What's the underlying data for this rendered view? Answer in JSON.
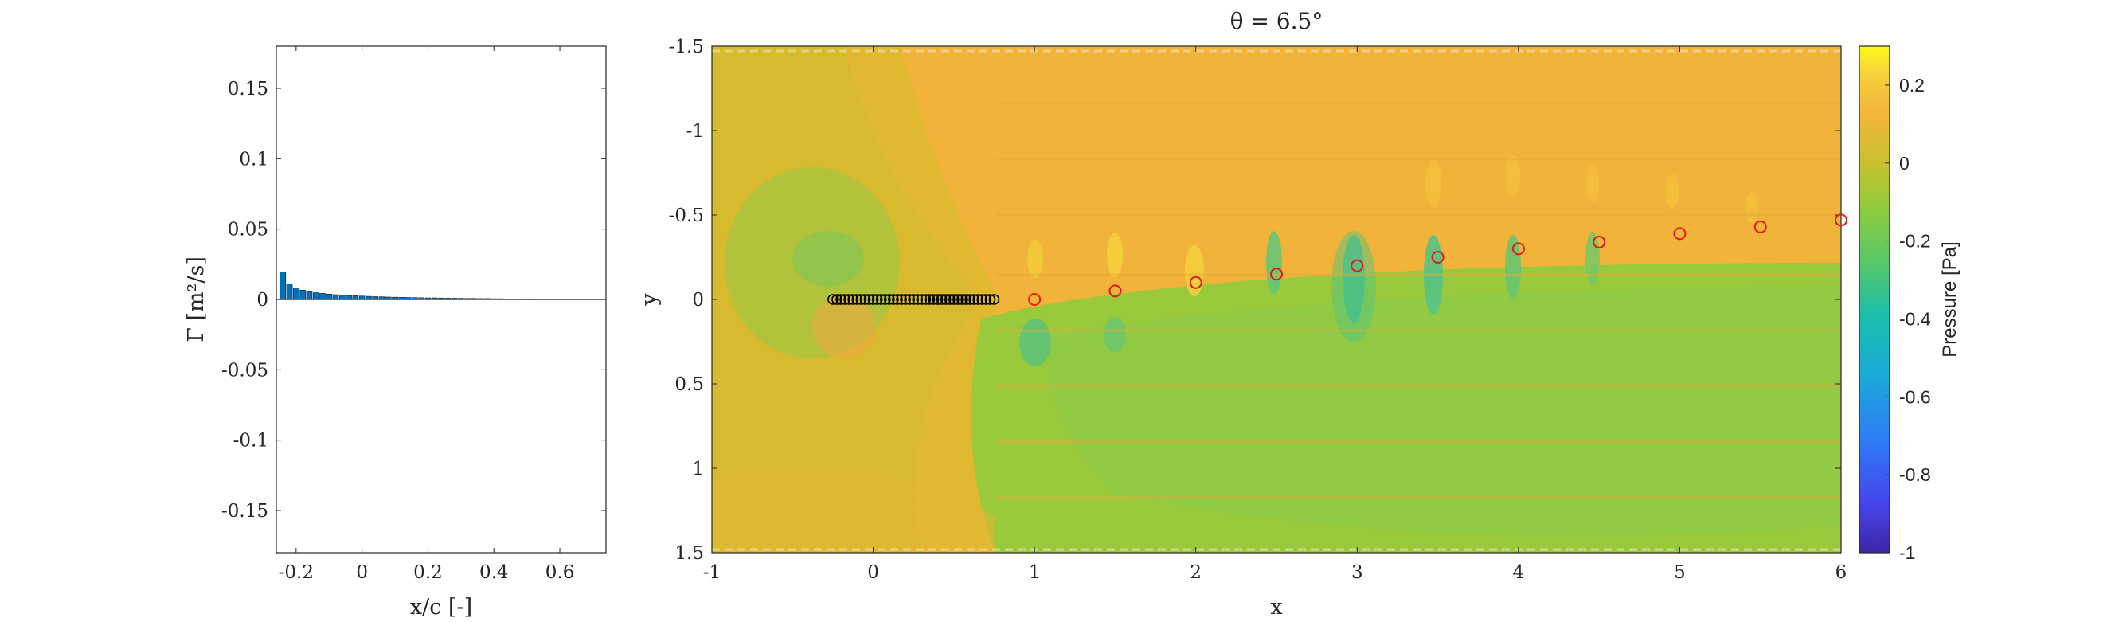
{
  "chart_data": [
    {
      "type": "bar",
      "xlabel": "x/c [-]",
      "ylabel": "Γ [m²/s]",
      "xlim": [
        -0.26,
        0.74
      ],
      "ylim": [
        -0.18,
        0.18
      ],
      "xticks": [
        "-0.2",
        "0",
        "0.2",
        "0.4",
        "0.6"
      ],
      "xtick_values": [
        -0.2,
        0,
        0.2,
        0.4,
        0.6
      ],
      "yticks": [
        "0.15",
        "0.1",
        "0.05",
        "0",
        "-0.05",
        "-0.1",
        "-0.15"
      ],
      "ytick_values": [
        0.15,
        0.1,
        0.05,
        0,
        -0.05,
        -0.1,
        -0.15
      ],
      "bar_color": "#0072BD",
      "x": [
        -0.24,
        -0.22,
        -0.2,
        -0.18,
        -0.16,
        -0.14,
        -0.12,
        -0.1,
        -0.08,
        -0.06,
        -0.04,
        -0.02,
        0,
        0.02,
        0.04,
        0.06,
        0.08,
        0.1,
        0.12,
        0.14,
        0.16,
        0.18,
        0.2,
        0.22,
        0.24,
        0.26,
        0.28,
        0.3,
        0.32,
        0.34,
        0.36,
        0.38,
        0.4,
        0.42,
        0.44,
        0.46,
        0.48,
        0.5,
        0.52
      ],
      "values": [
        0.0195,
        0.011,
        0.0082,
        0.0066,
        0.0056,
        0.0048,
        0.0043,
        0.0038,
        0.0034,
        0.0031,
        0.0028,
        0.0026,
        0.0024,
        0.0022,
        0.002,
        0.0019,
        0.0017,
        0.0016,
        0.0015,
        0.0014,
        0.0013,
        0.0012,
        0.0011,
        0.0011,
        0.001,
        0.0009,
        0.0009,
        0.0008,
        0.0007,
        0.0007,
        0.0006,
        0.0006,
        0.0005,
        0.0005,
        0.0004,
        0.0004,
        0.0003,
        0.0003,
        0.0002
      ]
    },
    {
      "type": "heatmap",
      "title": "θ = 6.5°",
      "xlabel": "x",
      "ylabel": "y",
      "xlim": [
        -1,
        6
      ],
      "ylim": [
        -1.5,
        1.5
      ],
      "y_reversed": true,
      "xticks": [
        "-1",
        "0",
        "1",
        "2",
        "3",
        "4",
        "5",
        "6"
      ],
      "xtick_values": [
        -1,
        0,
        1,
        2,
        3,
        4,
        5,
        6
      ],
      "yticks": [
        "-1.5",
        "-1",
        "-0.5",
        "0",
        "0.5",
        "1",
        "1.5"
      ],
      "ytick_values": [
        -1.5,
        -1,
        -0.5,
        0,
        0.5,
        1,
        1.5
      ],
      "colorbar": {
        "label": "Pressure [Pa]",
        "range": [
          -1,
          0.3
        ],
        "ticks": [
          "0.2",
          "0",
          "-0.2",
          "-0.4",
          "-0.6",
          "-0.8",
          "-1"
        ],
        "tick_values": [
          0.2,
          0,
          -0.2,
          -0.4,
          -0.6,
          -0.8,
          -1
        ],
        "colormap": "parula"
      },
      "plate_points": {
        "x_start": -0.25,
        "x_end": 0.75,
        "count": 41,
        "y": 0,
        "marker": "circle",
        "color": "#000000"
      },
      "wake_points": {
        "marker": "circle",
        "color": "#E41A1C",
        "x": [
          1.0,
          1.5,
          2.0,
          2.5,
          3.0,
          3.5,
          4.0,
          4.5,
          5.0,
          5.5,
          6.0
        ],
        "y": [
          0.0,
          -0.05,
          -0.1,
          -0.15,
          -0.2,
          -0.25,
          -0.3,
          -0.34,
          -0.39,
          -0.43,
          -0.47
        ]
      }
    }
  ]
}
